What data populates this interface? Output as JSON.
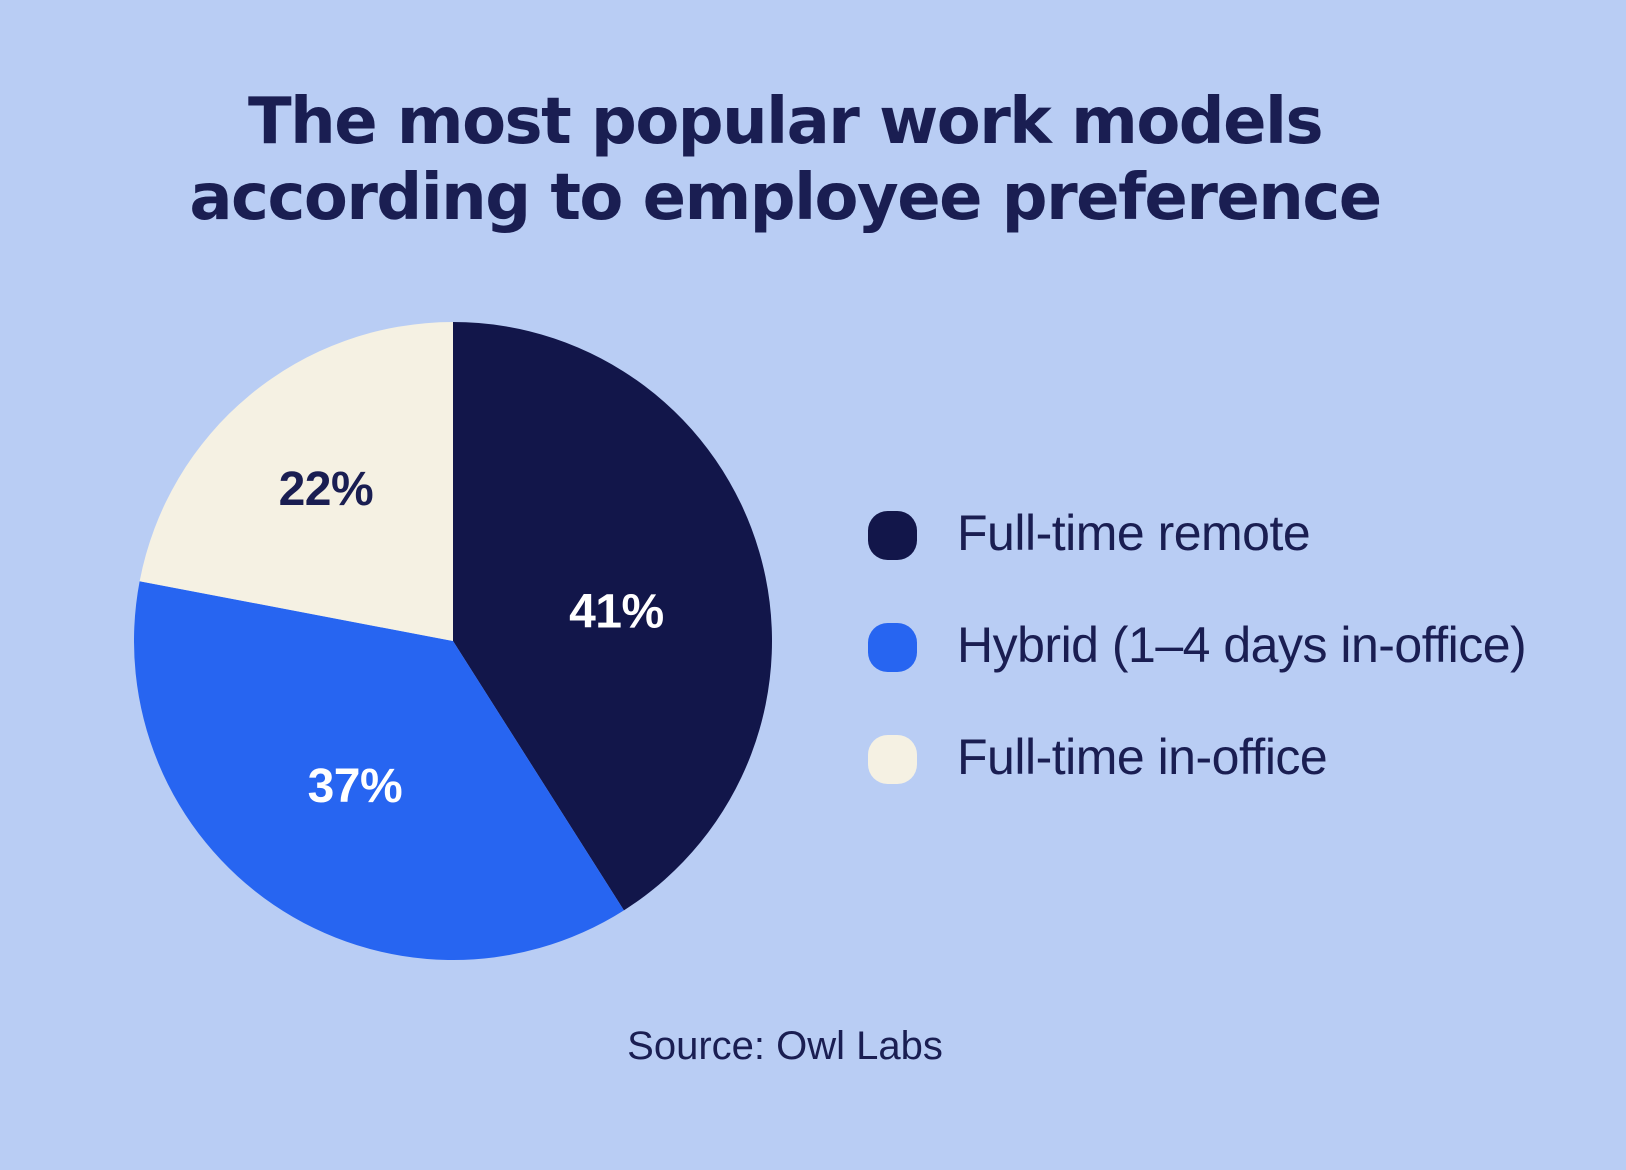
{
  "page": {
    "background": "#b9cdf4",
    "title": {
      "lines": [
        "The most popular work models",
        "according to employee preference"
      ]
    },
    "source": "Source: Owl Labs"
  },
  "colors": {
    "background": "#b9cdf4",
    "navy": "#12164a",
    "blue": "#2765f1",
    "cream": "#f5f1e3",
    "text_navy": "#1a1e52",
    "label_white": "#ffffff"
  },
  "chart_data": {
    "type": "pie",
    "title": "The most popular work models according to employee preference",
    "categories": [
      "Full-time remote",
      "Hybrid (1–4 days in-office)",
      "Full-time in-office"
    ],
    "values": [
      41,
      37,
      22
    ],
    "unit": "%",
    "start_angle_deg": 0,
    "direction": "clockwise",
    "legend_position": "right",
    "source": "Source: Owl Labs",
    "slices": [
      {
        "label": "Full-time remote",
        "value": 41,
        "display": "41%",
        "color": "#12164a",
        "text_color": "#ffffff",
        "label_angle": 80,
        "label_r": 0.52
      },
      {
        "label": "Hybrid (1–4 days in-office)",
        "value": 37,
        "display": "37%",
        "color": "#2765f1",
        "text_color": "#ffffff",
        "label_angle": 214,
        "label_r": 0.55
      },
      {
        "label": "Full-time in-office",
        "value": 22,
        "display": "22%",
        "color": "#f5f1e3",
        "text_color": "#1a1e52",
        "label_angle": 320,
        "label_r": 0.62
      }
    ]
  }
}
